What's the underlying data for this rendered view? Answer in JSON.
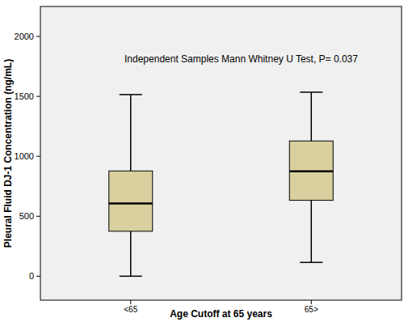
{
  "chart_data": {
    "type": "box",
    "annotation": "Independent Samples Mann Whitney U Test, P= 0.037",
    "x_label": "Age Cutoff at 65 years",
    "y_label": "Pleural Fluid DJ-1 Concentration (ng/mL)",
    "categories": [
      "<65",
      "65>"
    ],
    "whisker_low": [
      0,
      115
    ],
    "q1": [
      375,
      633
    ],
    "median": [
      607,
      875
    ],
    "q3": [
      878,
      1128
    ],
    "whisker_high": [
      1515,
      1535
    ],
    "color": "#d9cf9f",
    "ylim": [
      -200,
      2250
    ],
    "yticks": [
      0,
      500,
      1000,
      1500,
      2000
    ],
    "grid": false
  }
}
